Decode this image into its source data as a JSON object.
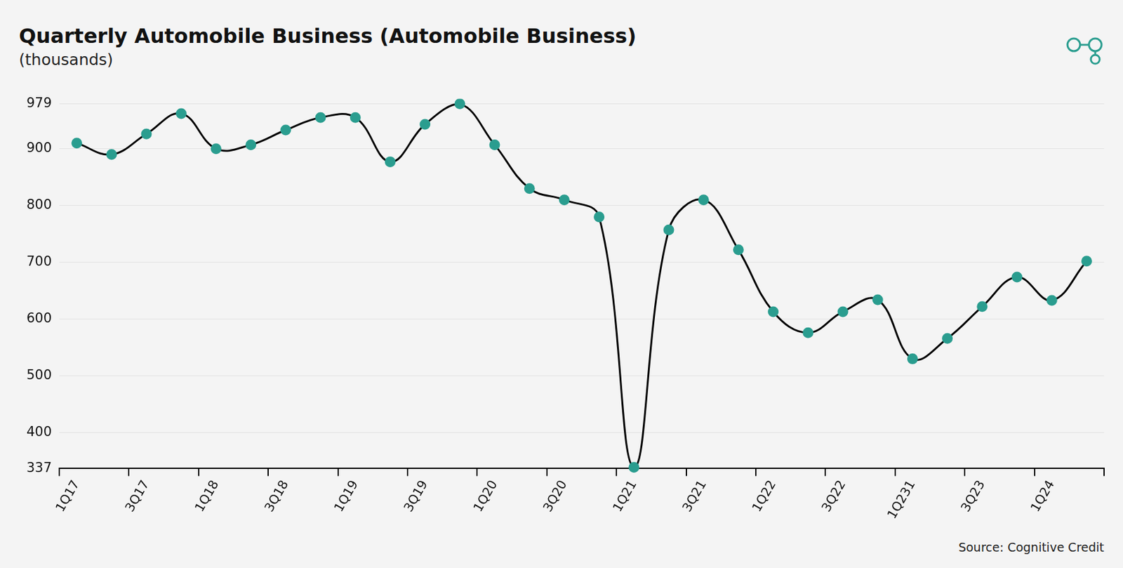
{
  "chart_data": {
    "type": "line",
    "title": "Quarterly Automobile Business (Automobile Business)",
    "subtitle": "(thousands)",
    "source": "Source: Cognitive Credit",
    "categories": [
      "1Q17",
      null,
      "3Q17",
      null,
      "1Q18",
      null,
      "3Q18",
      null,
      "1Q19",
      null,
      "3Q19",
      null,
      "1Q20",
      null,
      "3Q20",
      null,
      "1Q21",
      null,
      "3Q21",
      null,
      "1Q22",
      null,
      "3Q22",
      null,
      "1Q231",
      null,
      "3Q23",
      null,
      "1Q24",
      null
    ],
    "values": [
      910,
      890,
      926,
      962,
      900,
      907,
      933,
      955,
      955,
      877,
      943,
      979,
      907,
      830,
      810,
      780,
      339,
      757,
      810,
      722,
      613,
      576,
      613,
      634,
      530,
      566,
      622,
      674,
      633,
      702
    ],
    "color": "#2a9d8f",
    "line_color": "#000000",
    "ylim": [
      337,
      979
    ],
    "yticks": [
      337,
      400,
      500,
      600,
      700,
      800,
      900,
      979
    ],
    "grid": true,
    "marker": "circle"
  }
}
